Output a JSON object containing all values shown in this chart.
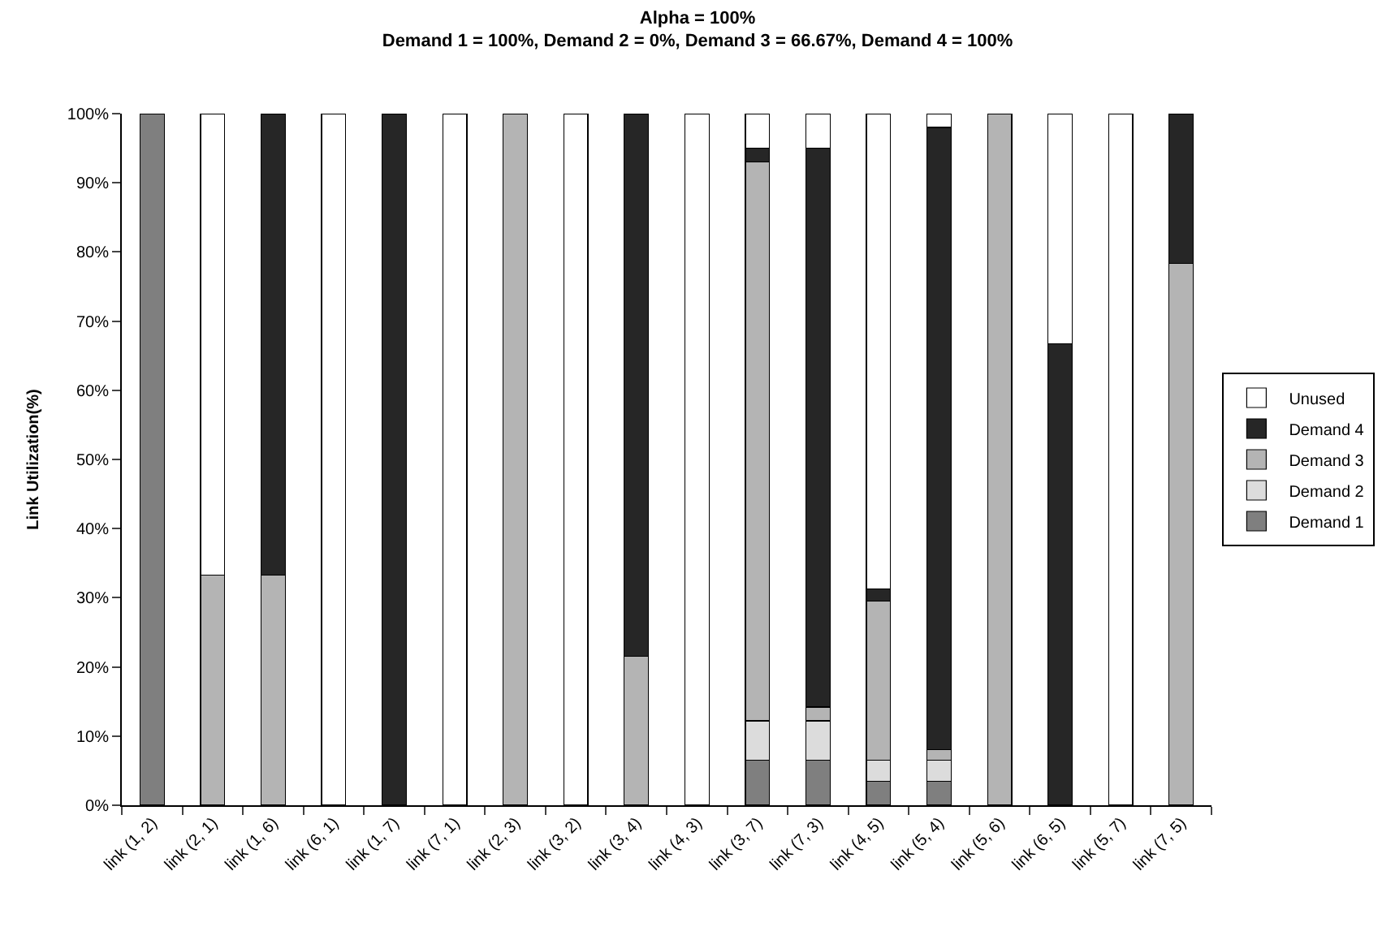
{
  "chart_data": {
    "type": "bar",
    "title": "Alpha = 100%",
    "subtitle": "Demand 1 = 100%, Demand 2 = 0%, Demand 3 = 66.67%, Demand 4 = 100%",
    "ylabel": "Link Utilization(%)",
    "categories": [
      "link (1, 2)",
      "link (2, 1)",
      "link (1, 6)",
      "link (6, 1)",
      "link (1, 7)",
      "link (7, 1)",
      "link (2, 3)",
      "link (3, 2)",
      "link (3, 4)",
      "link (4, 3)",
      "link (3, 7)",
      "link (7, 3)",
      "link (4, 5)",
      "link (5, 4)",
      "link (5, 6)",
      "link (6, 5)",
      "link (5, 7)",
      "link (7, 5)"
    ],
    "stacked": true,
    "legend": "right",
    "grid": false,
    "ylim": [
      0,
      100
    ],
    "yticks": [
      {
        "value": 0,
        "label": "0%"
      },
      {
        "value": 10,
        "label": "10%"
      },
      {
        "value": 20,
        "label": "20%"
      },
      {
        "value": 30,
        "label": "30%"
      },
      {
        "value": 40,
        "label": "40%"
      },
      {
        "value": 50,
        "label": "50%"
      },
      {
        "value": 60,
        "label": "60%"
      },
      {
        "value": 70,
        "label": "70%"
      },
      {
        "value": 80,
        "label": "80%"
      },
      {
        "value": 90,
        "label": "90%"
      },
      {
        "value": 100,
        "label": "100%"
      }
    ],
    "series": [
      {
        "name": "Demand 1",
        "color": "#7f7f7f",
        "values": [
          100,
          0,
          0,
          0,
          0,
          0,
          0,
          0,
          0,
          0,
          6.5,
          6.5,
          3.5,
          3.5,
          0,
          0,
          0,
          0
        ]
      },
      {
        "name": "Demand 2",
        "color": "#dcdcdc",
        "values": [
          0,
          0,
          0,
          0,
          0,
          0,
          0,
          0,
          0,
          0,
          5.7,
          5.7,
          3,
          3,
          0,
          0,
          0,
          0
        ]
      },
      {
        "name": "Demand 3",
        "color": "#b4b4b4",
        "values": [
          0,
          33.3,
          33.3,
          0,
          0,
          0,
          100,
          0,
          21.5,
          0,
          80.8,
          2,
          23,
          1.5,
          100,
          0,
          0,
          78.3
        ]
      },
      {
        "name": "Demand 4",
        "color": "#262626",
        "values": [
          0,
          0,
          66.7,
          0,
          100,
          0,
          0,
          0,
          78.5,
          0,
          2,
          80.8,
          1.8,
          90,
          0,
          66.7,
          0,
          21.7
        ]
      },
      {
        "name": "Unused",
        "color": "#ffffff",
        "values": [
          0,
          66.7,
          0,
          100,
          0,
          100,
          0,
          100,
          0,
          100,
          5,
          5,
          68.7,
          2,
          0,
          33.3,
          100,
          0
        ]
      }
    ]
  }
}
